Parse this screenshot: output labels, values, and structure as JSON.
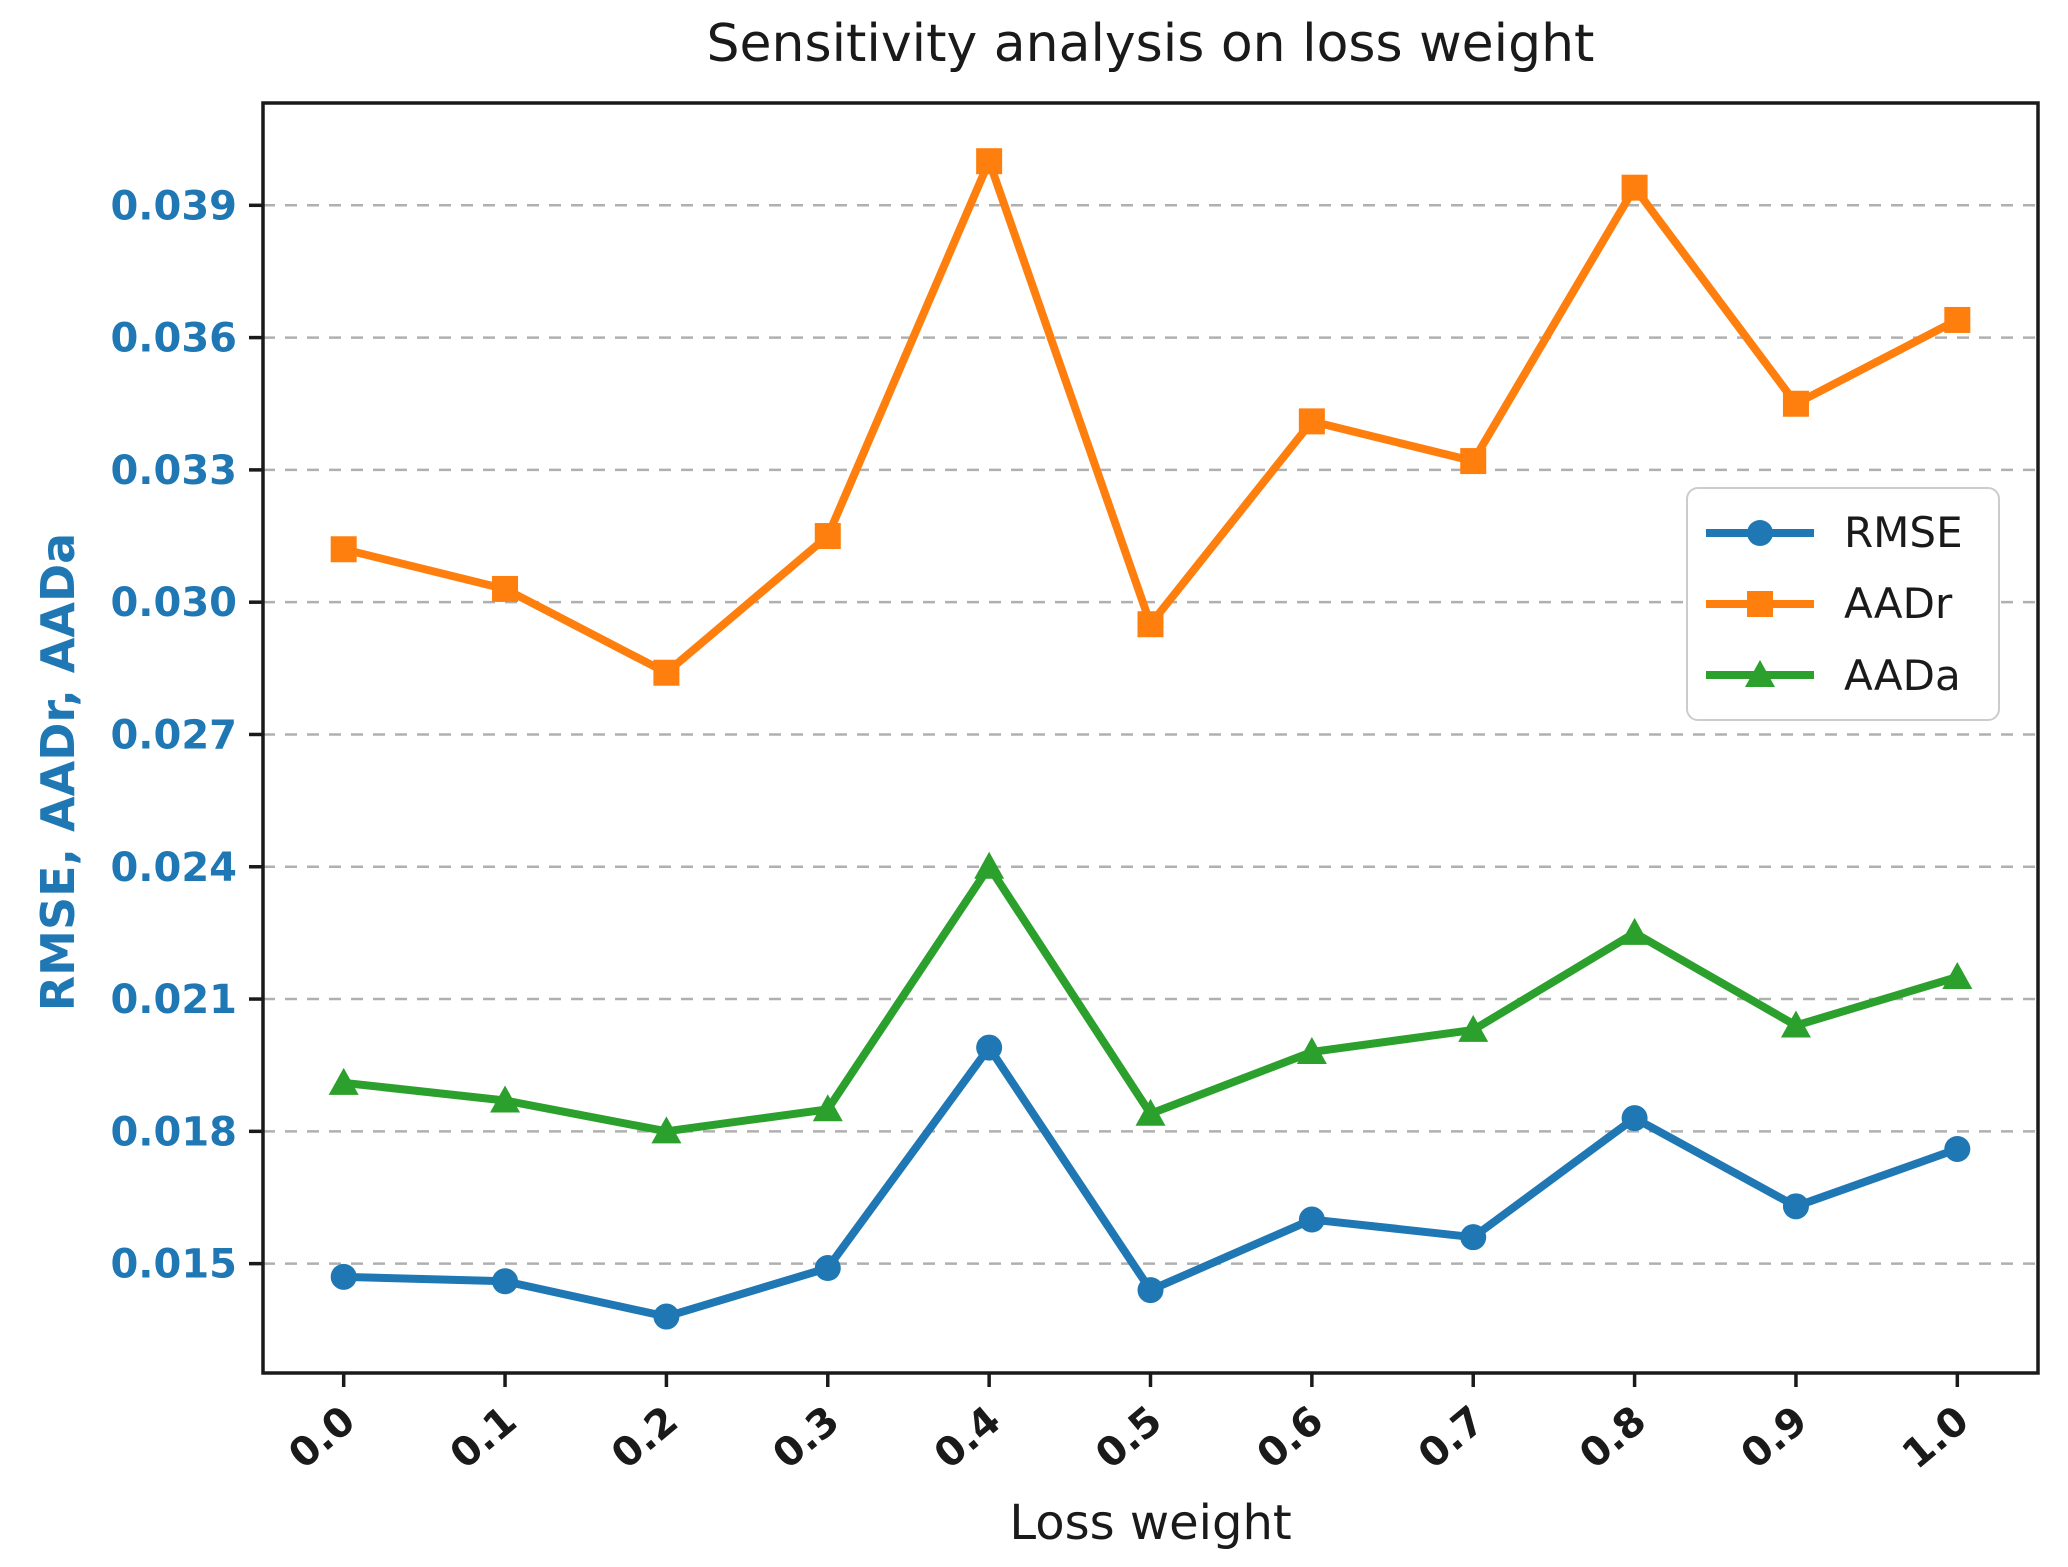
{
  "chart_data": {
    "type": "line",
    "title": "Sensitivity analysis on loss weight",
    "xlabel": "Loss weight",
    "ylabel": "RMSE, AADr, AADa",
    "x": [
      0.0,
      0.1,
      0.2,
      0.3,
      0.4,
      0.5,
      0.6,
      0.7,
      0.8,
      0.9,
      1.0
    ],
    "x_tick_labels": [
      "0.0",
      "0.1",
      "0.2",
      "0.3",
      "0.4",
      "0.5",
      "0.6",
      "0.7",
      "0.8",
      "0.9",
      "1.0"
    ],
    "y_ticks": [
      0.015,
      0.018,
      0.021,
      0.024,
      0.027,
      0.03,
      0.033,
      0.036,
      0.039
    ],
    "y_tick_labels": [
      "0.015",
      "0.018",
      "0.021",
      "0.024",
      "0.027",
      "0.030",
      "0.033",
      "0.036",
      "0.039"
    ],
    "xlim": [
      -0.05,
      1.05
    ],
    "ylim": [
      0.01252,
      0.04132
    ],
    "grid": "horizontal, dashed, gray",
    "legend_position": "center right",
    "series": [
      {
        "name": "RMSE",
        "marker": "circle",
        "color": "#1f77b4",
        "values": [
          0.0147,
          0.0146,
          0.0138,
          0.0149,
          0.0199,
          0.0144,
          0.016,
          0.0156,
          0.0183,
          0.0163,
          0.0176
        ]
      },
      {
        "name": "AADr",
        "marker": "square",
        "color": "#ff7f0e",
        "values": [
          0.0312,
          0.0303,
          0.0284,
          0.0315,
          0.04,
          0.0295,
          0.0341,
          0.0332,
          0.0394,
          0.0345,
          0.0364
        ]
      },
      {
        "name": "AADa",
        "marker": "triangle",
        "color": "#2ca02c",
        "values": [
          0.0191,
          0.0187,
          0.018,
          0.0185,
          0.024,
          0.0184,
          0.0198,
          0.0203,
          0.0225,
          0.0204,
          0.0215
        ]
      }
    ]
  },
  "style": {
    "grid_color": "#b0b0b0",
    "spine_color": "#1a1a1a",
    "x_tick_label_color": "#1a1a1a",
    "y_tick_label_color": "#1f77b4",
    "background": "#ffffff"
  }
}
